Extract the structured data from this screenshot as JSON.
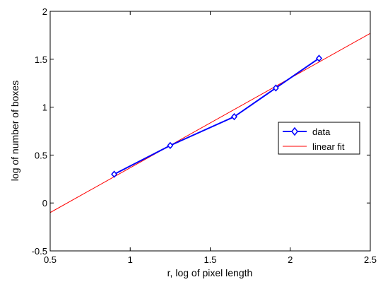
{
  "chart_data": {
    "type": "line",
    "xlabel": "r, log of pixel length",
    "ylabel": "log of number of boxes",
    "xlim": [
      0.5,
      2.5
    ],
    "ylim": [
      -0.5,
      2
    ],
    "x_ticks": [
      0.5,
      1,
      1.5,
      2,
      2.5
    ],
    "x_tick_labels": [
      "0.5",
      "1",
      "1.5",
      "2",
      "2.5"
    ],
    "y_ticks": [
      -0.5,
      0,
      0.5,
      1,
      1.5,
      2
    ],
    "y_tick_labels": [
      "-0.5",
      "0",
      "0.5",
      "1",
      "1.5",
      "2"
    ],
    "grid": false,
    "legend_position": "right-middle",
    "series": [
      {
        "name": "data",
        "color": "#0000ff",
        "marker": "diamond",
        "x": [
          0.9,
          1.25,
          1.65,
          1.91,
          2.18
        ],
        "y": [
          0.3,
          0.6,
          0.9,
          1.2,
          1.51
        ]
      },
      {
        "name": "linear fit",
        "color": "#ff0000",
        "marker": "none",
        "x": [
          0.5,
          2.5
        ],
        "y": [
          -0.1,
          1.77
        ]
      }
    ]
  }
}
